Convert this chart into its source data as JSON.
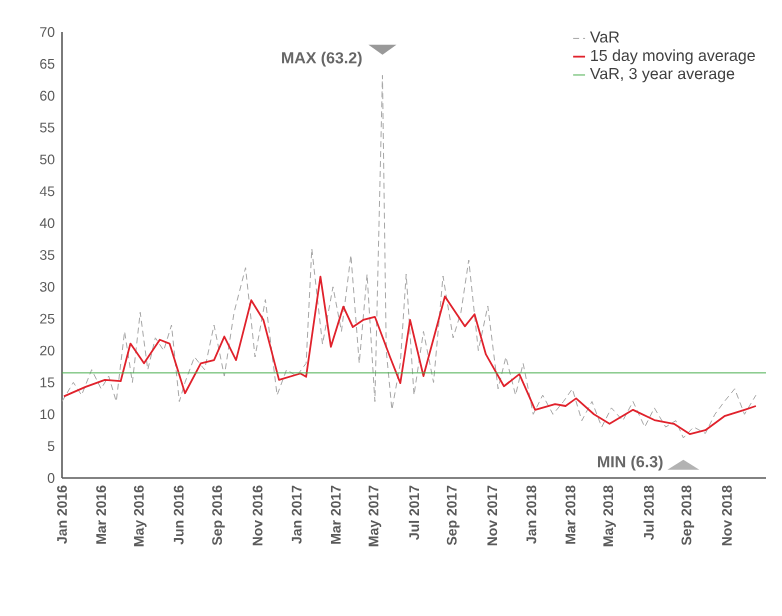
{
  "chart_data": {
    "type": "line",
    "xlim": [
      "2016-01-01",
      "2019-01-01"
    ],
    "ylim": [
      0,
      70
    ],
    "xticks": [
      {
        "value": "2016-01",
        "label": "Jan 2016"
      },
      {
        "value": "2016-03",
        "label": "Mar 2016"
      },
      {
        "value": "2016-05",
        "label": "May 2016"
      },
      {
        "value": "2016-06-30",
        "label": "Jun 2016"
      },
      {
        "value": "2016-09",
        "label": "Sep 2016"
      },
      {
        "value": "2016-11",
        "label": "Nov 2016"
      },
      {
        "value": "2017-01",
        "label": "Jan 2017"
      },
      {
        "value": "2017-03",
        "label": "Mar 2017"
      },
      {
        "value": "2017-05",
        "label": "May 2017"
      },
      {
        "value": "2017-07",
        "label": "Jul 2017"
      },
      {
        "value": "2017-09",
        "label": "Sep 2017"
      },
      {
        "value": "2017-11",
        "label": "Nov 2017"
      },
      {
        "value": "2018-01",
        "label": "Jan 2018"
      },
      {
        "value": "2018-03",
        "label": "Mar 2018"
      },
      {
        "value": "2018-05",
        "label": "May 2018"
      },
      {
        "value": "2018-07",
        "label": "Jul 2018"
      },
      {
        "value": "2018-09",
        "label": "Sep 2018"
      },
      {
        "value": "2018-11",
        "label": "Nov 2018"
      }
    ],
    "yticks": [
      0,
      5,
      10,
      15,
      20,
      25,
      30,
      35,
      40,
      45,
      50,
      55,
      60,
      65,
      70
    ],
    "grid": false,
    "legend": "top right",
    "marker": "none",
    "series": [
      {
        "name": "VaR",
        "color": "#a6a6a6",
        "line_style": "dashed",
        "x": [
          "2016-01-01",
          "2016-01-19",
          "2016-02-01",
          "2016-02-16",
          "2016-03-01",
          "2016-03-13",
          "2016-03-25",
          "2016-04-07",
          "2016-04-19",
          "2016-05-01",
          "2016-05-13",
          "2016-05-25",
          "2016-06-07",
          "2016-06-19",
          "2016-07-01",
          "2016-07-10",
          "2016-07-25",
          "2016-08-10",
          "2016-08-25",
          "2016-09-10",
          "2016-09-25",
          "2016-10-13",
          "2016-10-28",
          "2016-11-13",
          "2016-12-01",
          "2016-12-16",
          "2017-01-01",
          "2017-01-16",
          "2017-01-25",
          "2017-02-10",
          "2017-02-25",
          "2017-03-10",
          "2017-03-25",
          "2017-04-07",
          "2017-04-19",
          "2017-05-01",
          "2017-05-13",
          "2017-05-19",
          "2017-05-28",
          "2017-06-10",
          "2017-06-19",
          "2017-07-01",
          "2017-07-16",
          "2017-08-01",
          "2017-08-16",
          "2017-09-01",
          "2017-09-13",
          "2017-09-25",
          "2017-10-10",
          "2017-10-25",
          "2017-11-10",
          "2017-11-22",
          "2017-12-07",
          "2017-12-19",
          "2018-01-04",
          "2018-01-19",
          "2018-02-04",
          "2018-02-19",
          "2018-03-04",
          "2018-03-19",
          "2018-04-04",
          "2018-04-19",
          "2018-05-04",
          "2018-05-22",
          "2018-06-07",
          "2018-06-25",
          "2018-07-10",
          "2018-07-28",
          "2018-08-13",
          "2018-08-25",
          "2018-09-10",
          "2018-09-28",
          "2018-10-13",
          "2018-10-28",
          "2018-11-13",
          "2018-11-28",
          "2018-12-16"
        ],
        "values": [
          12,
          15,
          13,
          17,
          14,
          16,
          12,
          23,
          15,
          26,
          17,
          22,
          20,
          24,
          12,
          15,
          19,
          17,
          24,
          16,
          26,
          33,
          19,
          28,
          13,
          17,
          16,
          18,
          36,
          21,
          30,
          23,
          35,
          18,
          32,
          12,
          63.2,
          20,
          10.7,
          18,
          32,
          13,
          23,
          15,
          31.7,
          22,
          26,
          34.2,
          20,
          27,
          14,
          19,
          13,
          18,
          10,
          13,
          10,
          12,
          14,
          9,
          12,
          8,
          11,
          9,
          12,
          8,
          11,
          8,
          9,
          6.3,
          8,
          7,
          10,
          12,
          14,
          10,
          13
        ]
      },
      {
        "name": "15 day moving average",
        "color": "#e0212b",
        "x": [
          "2016-01-04",
          "2016-02-07",
          "2016-03-07",
          "2016-04-01",
          "2016-04-16",
          "2016-05-07",
          "2016-06-01",
          "2016-06-16",
          "2016-07-10",
          "2016-08-04",
          "2016-08-25",
          "2016-09-10",
          "2016-09-28",
          "2016-10-22",
          "2016-11-10",
          "2016-12-04",
          "2017-01-07",
          "2017-01-16",
          "2017-02-07",
          "2017-02-22",
          "2017-03-13",
          "2017-03-28",
          "2017-04-13",
          "2017-05-01",
          "2017-05-25",
          "2017-06-10",
          "2017-06-25",
          "2017-07-16",
          "2017-08-19",
          "2017-09-19",
          "2017-10-04",
          "2017-10-22",
          "2017-11-19",
          "2017-12-13",
          "2018-01-07",
          "2018-02-07",
          "2018-02-22",
          "2018-03-10",
          "2018-04-07",
          "2018-05-01",
          "2018-06-07",
          "2018-07-10",
          "2018-08-10",
          "2018-09-04",
          "2018-09-28",
          "2018-10-28",
          "2018-11-28",
          "2018-12-16"
        ],
        "values": [
          12.8,
          14.3,
          15.4,
          15.2,
          21.1,
          18.0,
          21.7,
          21.1,
          13.3,
          18.0,
          18.5,
          22.2,
          18.5,
          27.9,
          24.8,
          15.4,
          16.4,
          15.9,
          31.6,
          20.6,
          26.9,
          23.7,
          24.8,
          25.3,
          19.0,
          14.9,
          24.8,
          16.0,
          28.5,
          23.8,
          25.7,
          19.4,
          14.4,
          16.3,
          10.7,
          11.6,
          11.3,
          12.5,
          10.0,
          8.5,
          10.7,
          9.1,
          8.5,
          6.9,
          7.5,
          9.7,
          10.7,
          11.3
        ]
      },
      {
        "name": "VaR, 3 year average",
        "color": "#4caf50",
        "x": [
          "2016-01-01",
          "2019-01-01"
        ],
        "values": [
          16.5,
          16.5
        ]
      }
    ],
    "annotations": [
      {
        "text": "MAX (63.2)",
        "x": "2017-05-13",
        "y": 63.2
      },
      {
        "text": "MIN (6.3)",
        "x": "2018-08-25",
        "y": 6.3
      }
    ]
  }
}
